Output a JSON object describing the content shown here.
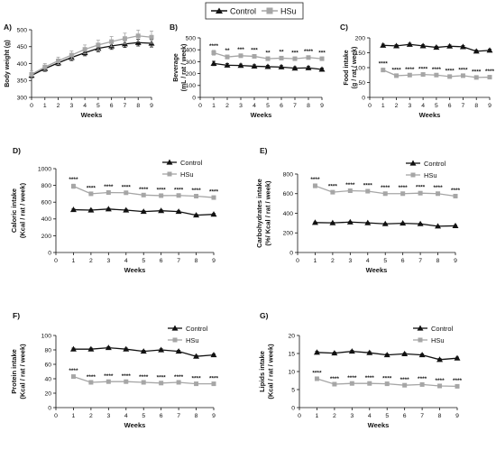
{
  "legend": {
    "items": [
      {
        "name": "Control",
        "color": "#111111",
        "marker": "triangle"
      },
      {
        "name": "HSu",
        "color": "#a6a6a6",
        "marker": "square"
      }
    ]
  },
  "chart_data": [
    {
      "id": "A",
      "panel_label": "A)",
      "type": "line",
      "title": "",
      "xlabel": "Weeks",
      "ylabel": "Body weight (g)",
      "xlim": [
        0,
        9
      ],
      "ylim": [
        300,
        500
      ],
      "xticks": [
        0,
        1,
        2,
        3,
        4,
        5,
        6,
        7,
        8,
        9
      ],
      "yticks": [
        300,
        350,
        400,
        450,
        500
      ],
      "grid": false,
      "series": [
        {
          "name": "Control",
          "x": [
            0,
            1,
            2,
            3,
            4,
            5,
            6,
            7,
            8,
            9
          ],
          "values": [
            365,
            385,
            402,
            418,
            432,
            445,
            452,
            458,
            462,
            460
          ],
          "errors": [
            8,
            8,
            8,
            9,
            9,
            10,
            10,
            10,
            10,
            11
          ]
        },
        {
          "name": "HSu",
          "x": [
            0,
            1,
            2,
            3,
            4,
            5,
            6,
            7,
            8,
            9
          ],
          "values": [
            368,
            390,
            408,
            425,
            442,
            455,
            465,
            474,
            482,
            478
          ],
          "errors": [
            10,
            10,
            11,
            12,
            13,
            14,
            15,
            16,
            17,
            18
          ]
        }
      ],
      "annotations": []
    },
    {
      "id": "B",
      "panel_label": "B)",
      "type": "line",
      "title": "",
      "xlabel": "Weeks",
      "ylabel": "Beverage\n(mL / rat / week)",
      "xlim": [
        0,
        9
      ],
      "ylim": [
        0,
        500
      ],
      "xticks": [
        0,
        1,
        2,
        3,
        4,
        5,
        6,
        7,
        8,
        9
      ],
      "yticks": [
        0,
        100,
        200,
        300,
        400,
        500
      ],
      "grid": false,
      "series": [
        {
          "name": "Control",
          "x": [
            1,
            2,
            3,
            4,
            5,
            6,
            7,
            8,
            9
          ],
          "values": [
            285,
            270,
            268,
            262,
            258,
            255,
            245,
            248,
            235
          ],
          "errors": [
            18,
            14,
            12,
            12,
            12,
            12,
            12,
            12,
            12
          ]
        },
        {
          "name": "HSu",
          "x": [
            1,
            2,
            3,
            4,
            5,
            6,
            7,
            8,
            9
          ],
          "values": [
            375,
            340,
            350,
            345,
            325,
            330,
            325,
            335,
            325
          ],
          "errors": [
            20,
            16,
            14,
            14,
            14,
            14,
            14,
            14,
            14
          ]
        }
      ],
      "annotations": [
        "****",
        "**",
        "***",
        "***",
        "**",
        "**",
        "***",
        "****",
        "***"
      ]
    },
    {
      "id": "C",
      "panel_label": "C)",
      "type": "line",
      "title": "",
      "xlabel": "Weeks",
      "ylabel": "Food intake\n(g / rat / week)",
      "xlim": [
        0,
        9
      ],
      "ylim": [
        0,
        200
      ],
      "xticks": [
        0,
        1,
        2,
        3,
        4,
        5,
        6,
        7,
        8,
        9
      ],
      "yticks": [
        0,
        50,
        100,
        150,
        200
      ],
      "grid": false,
      "series": [
        {
          "name": "Control",
          "x": [
            1,
            2,
            3,
            4,
            5,
            6,
            7,
            8,
            9
          ],
          "values": [
            175,
            173,
            178,
            173,
            168,
            172,
            170,
            155,
            158
          ],
          "errors": [
            4,
            4,
            4,
            4,
            4,
            4,
            4,
            4,
            4
          ]
        },
        {
          "name": "HSu",
          "x": [
            1,
            2,
            3,
            4,
            5,
            6,
            7,
            8,
            9
          ],
          "values": [
            92,
            73,
            75,
            77,
            75,
            70,
            73,
            67,
            68
          ],
          "errors": [
            6,
            4,
            4,
            4,
            4,
            4,
            4,
            4,
            4
          ]
        }
      ],
      "annotations": [
        "****",
        "****",
        "****",
        "****",
        "****",
        "****",
        "****",
        "****",
        "****"
      ]
    },
    {
      "id": "D",
      "panel_label": "D)",
      "type": "line",
      "title": "",
      "xlabel": "Weeks",
      "ylabel": "Caloric intake\n(Kcal / rat / week)",
      "xlim": [
        0,
        9
      ],
      "ylim": [
        0,
        1000
      ],
      "xticks": [
        0,
        1,
        2,
        3,
        4,
        5,
        6,
        7,
        8,
        9
      ],
      "yticks": [
        0,
        200,
        400,
        600,
        800,
        1000
      ],
      "grid": false,
      "legend_position": "top-right",
      "series": [
        {
          "name": "Control",
          "x": [
            1,
            2,
            3,
            4,
            5,
            6,
            7,
            8,
            9
          ],
          "values": [
            510,
            505,
            518,
            505,
            488,
            498,
            488,
            445,
            455
          ],
          "errors": [
            10,
            10,
            10,
            10,
            10,
            10,
            10,
            10,
            10
          ]
        },
        {
          "name": "HSu",
          "x": [
            1,
            2,
            3,
            4,
            5,
            6,
            7,
            8,
            9
          ],
          "values": [
            790,
            700,
            715,
            712,
            685,
            678,
            680,
            672,
            655
          ],
          "errors": [
            25,
            15,
            15,
            15,
            15,
            15,
            15,
            15,
            15
          ]
        }
      ],
      "annotations": [
        "****",
        "****",
        "****",
        "****",
        "****",
        "****",
        "****",
        "****",
        "****"
      ]
    },
    {
      "id": "E",
      "panel_label": "E)",
      "type": "line",
      "title": "",
      "xlabel": "Weeks",
      "ylabel": "Carbohydrates intake\n(%/ Kcal / rat / week)",
      "xlim": [
        0,
        9
      ],
      "ylim": [
        0,
        800
      ],
      "xticks": [
        0,
        1,
        2,
        3,
        4,
        5,
        6,
        7,
        8,
        9
      ],
      "yticks": [
        0,
        200,
        400,
        600,
        800
      ],
      "grid": false,
      "legend_position": "top-right",
      "series": [
        {
          "name": "Control",
          "x": [
            1,
            2,
            3,
            4,
            5,
            6,
            7,
            8,
            9
          ],
          "values": [
            305,
            302,
            310,
            302,
            292,
            298,
            292,
            268,
            272
          ],
          "errors": [
            6,
            6,
            6,
            6,
            6,
            6,
            6,
            6,
            6
          ]
        },
        {
          "name": "HSu",
          "x": [
            1,
            2,
            3,
            4,
            5,
            6,
            7,
            8,
            9
          ],
          "values": [
            680,
            615,
            630,
            625,
            600,
            600,
            605,
            600,
            575
          ],
          "errors": [
            20,
            14,
            14,
            14,
            14,
            14,
            14,
            14,
            14
          ]
        }
      ],
      "annotations": [
        "****",
        "****",
        "****",
        "****",
        "****",
        "****",
        "****",
        "****",
        "****"
      ]
    },
    {
      "id": "F",
      "panel_label": "F)",
      "type": "line",
      "title": "",
      "xlabel": "Weeks",
      "ylabel": "Protein intake\n(Kcal / rat / week)",
      "xlim": [
        0,
        9
      ],
      "ylim": [
        0,
        100
      ],
      "xticks": [
        0,
        1,
        2,
        3,
        4,
        5,
        6,
        7,
        8,
        9
      ],
      "yticks": [
        0,
        20,
        40,
        60,
        80,
        100
      ],
      "grid": false,
      "legend_position": "right",
      "series": [
        {
          "name": "Control",
          "x": [
            1,
            2,
            3,
            4,
            5,
            6,
            7,
            8,
            9
          ],
          "values": [
            81,
            81,
            83,
            81,
            78,
            80,
            78,
            71,
            73
          ],
          "errors": [
            1.5,
            1.5,
            1.5,
            1.5,
            1.5,
            1.5,
            1.5,
            1.5,
            1.5
          ]
        },
        {
          "name": "HSu",
          "x": [
            1,
            2,
            3,
            4,
            5,
            6,
            7,
            8,
            9
          ],
          "values": [
            43,
            35,
            36,
            36,
            35,
            34,
            35,
            33,
            33
          ],
          "errors": [
            2,
            1.5,
            1.5,
            1.5,
            1.5,
            1.5,
            1.5,
            1.5,
            1.5
          ]
        }
      ],
      "annotations": [
        "****",
        "****",
        "****",
        "****",
        "****",
        "****",
        "****",
        "****",
        "****"
      ]
    },
    {
      "id": "G",
      "panel_label": "G)",
      "type": "line",
      "title": "",
      "xlabel": "Weeks",
      "ylabel": "Lipids intake\n(Kcal / rat / week)",
      "xlim": [
        0,
        9
      ],
      "ylim": [
        0,
        20
      ],
      "xticks": [
        0,
        1,
        2,
        3,
        4,
        5,
        6,
        7,
        8,
        9
      ],
      "yticks": [
        0,
        5,
        10,
        15,
        20
      ],
      "grid": false,
      "legend_position": "right",
      "series": [
        {
          "name": "Control",
          "x": [
            1,
            2,
            3,
            4,
            5,
            6,
            7,
            8,
            9
          ],
          "values": [
            15.3,
            15.1,
            15.6,
            15.2,
            14.6,
            14.9,
            14.6,
            13.3,
            13.7
          ],
          "errors": [
            0.3,
            0.3,
            0.3,
            0.3,
            0.3,
            0.3,
            0.3,
            0.3,
            0.3
          ]
        },
        {
          "name": "HSu",
          "x": [
            1,
            2,
            3,
            4,
            5,
            6,
            7,
            8,
            9
          ],
          "values": [
            8.0,
            6.5,
            6.7,
            6.7,
            6.6,
            6.2,
            6.4,
            6.0,
            5.9
          ],
          "errors": [
            0.4,
            0.3,
            0.3,
            0.3,
            0.3,
            0.3,
            0.3,
            0.3,
            0.3
          ]
        }
      ],
      "annotations": [
        "****",
        "****",
        "****",
        "****",
        "****",
        "****",
        "****",
        "****",
        "****"
      ]
    }
  ]
}
